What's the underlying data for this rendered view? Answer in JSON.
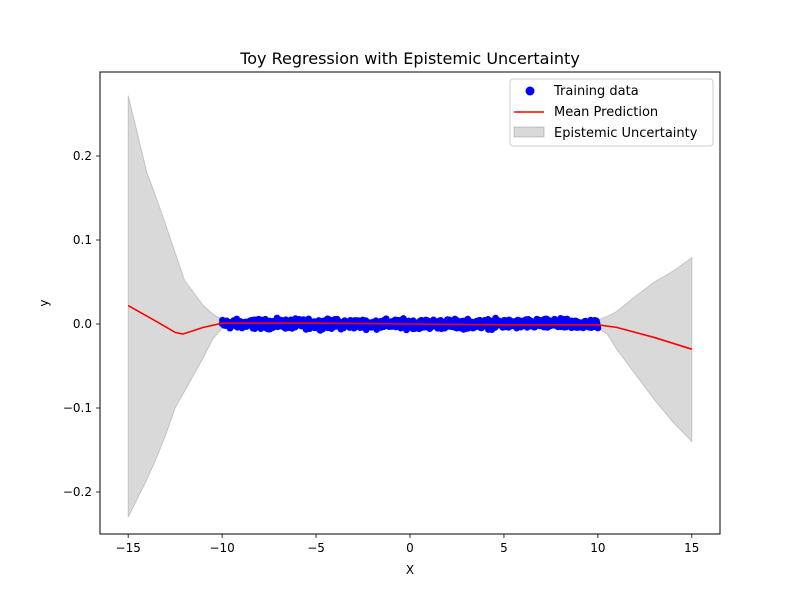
{
  "chart_data": {
    "type": "scatter",
    "title": "Toy Regression with Epistemic Uncertainty",
    "xlabel": "X",
    "ylabel": "y",
    "xlim": [
      -16.5,
      16.5
    ],
    "ylim": [
      -0.25,
      0.3
    ],
    "xticks": [
      -15,
      -10,
      -5,
      0,
      5,
      10,
      15
    ],
    "xtick_labels": [
      "−15",
      "−10",
      "−5",
      "0",
      "5",
      "10",
      "15"
    ],
    "yticks": [
      -0.2,
      -0.1,
      0.0,
      0.1,
      0.2
    ],
    "ytick_labels": [
      "−0.2",
      "−0.1",
      "0.0",
      "0.1",
      "0.2"
    ],
    "grid": false,
    "legend_position": "upper right",
    "legend": [
      {
        "label": "Training data",
        "kind": "scatter"
      },
      {
        "label": "Mean Prediction",
        "kind": "line"
      },
      {
        "label": "Epistemic Uncertainty",
        "kind": "area"
      }
    ],
    "series": [
      {
        "name": "Training data",
        "kind": "scatter",
        "color": "#0000ff",
        "x_range": [
          -10,
          10
        ],
        "y_range": [
          -0.008,
          0.008
        ],
        "approx_count": 1000
      },
      {
        "name": "Mean Prediction",
        "kind": "line",
        "color": "#ff0000",
        "x": [
          -15,
          -13.5,
          -12.5,
          -12.1,
          -11,
          -10,
          -5,
          0,
          5,
          10,
          11,
          13,
          15
        ],
        "y": [
          0.022,
          0.003,
          -0.01,
          -0.012,
          -0.004,
          0.001,
          0.001,
          0.0,
          -0.001,
          -0.001,
          -0.004,
          -0.016,
          -0.03
        ]
      },
      {
        "name": "Epistemic Uncertainty",
        "kind": "area",
        "color": "#808080",
        "x": [
          -15,
          -14,
          -13.5,
          -13,
          -12.5,
          -12,
          -11.5,
          -11,
          -10.5,
          -10,
          -5,
          0,
          5,
          10,
          10.5,
          11,
          12,
          13,
          14,
          15
        ],
        "upper": [
          0.272,
          0.18,
          0.15,
          0.118,
          0.085,
          0.052,
          0.037,
          0.022,
          0.012,
          0.005,
          0.005,
          0.005,
          0.005,
          0.005,
          0.009,
          0.015,
          0.033,
          0.05,
          0.063,
          0.079
        ],
        "lower": [
          -0.23,
          -0.185,
          -0.16,
          -0.132,
          -0.1,
          -0.08,
          -0.06,
          -0.04,
          -0.018,
          -0.005,
          -0.005,
          -0.005,
          -0.005,
          -0.005,
          -0.012,
          -0.03,
          -0.06,
          -0.09,
          -0.117,
          -0.14
        ]
      }
    ]
  }
}
